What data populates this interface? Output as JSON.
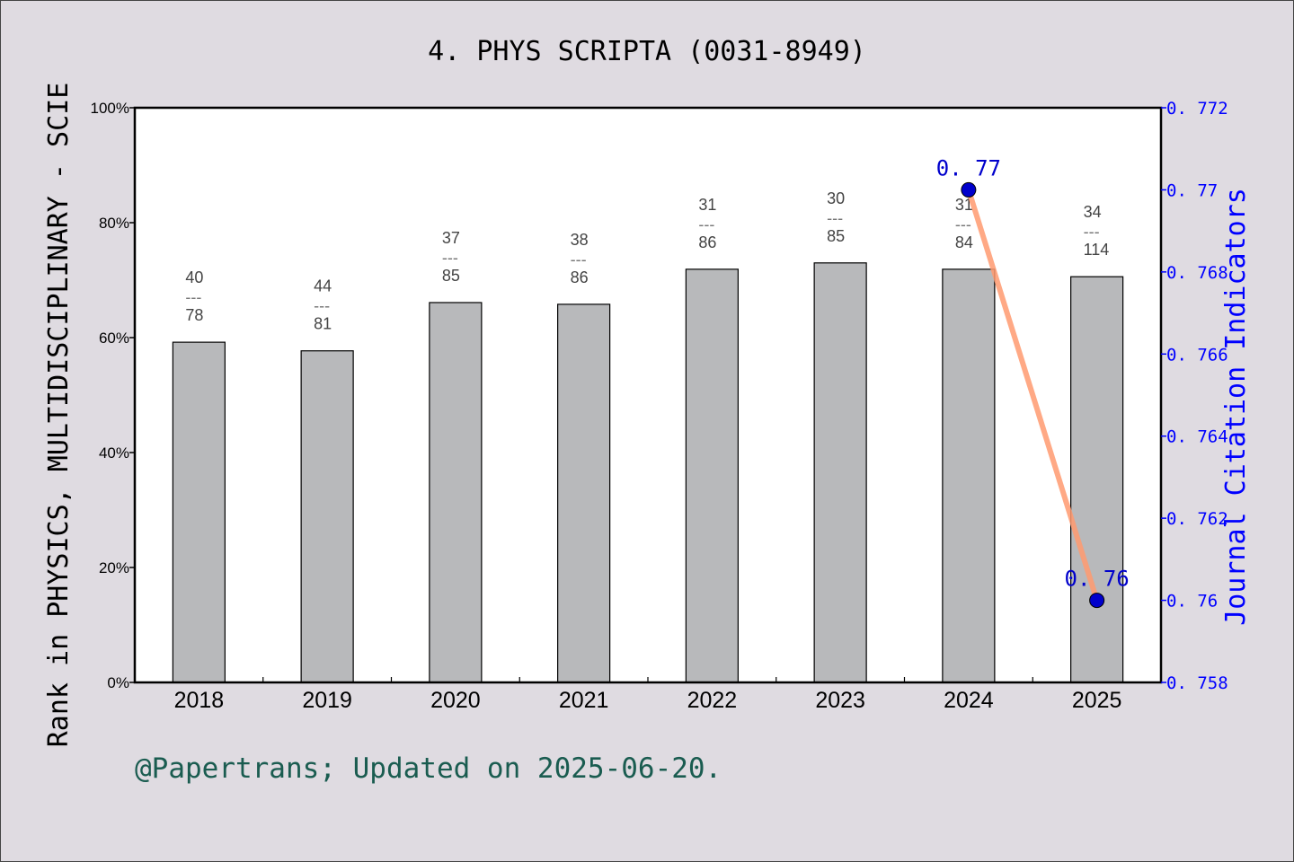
{
  "chart_data": {
    "type": "bar",
    "title": "4. PHYS SCRIPTA (0031-8949)",
    "ylabel": "Rank in PHYSICS, MULTIDISCIPLINARY - SCIE",
    "y2label": "Journal Citation Indicators",
    "categories": [
      "2018",
      "2019",
      "2020",
      "2021",
      "2022",
      "2023",
      "2024",
      "2025"
    ],
    "ylim": [
      0,
      100
    ],
    "yticks": [
      "0%",
      "20%",
      "40%",
      "60%",
      "80%",
      "100%"
    ],
    "y2lim": [
      0.758,
      0.772
    ],
    "y2ticks": [
      "0.758",
      "0.76",
      "0.762",
      "0.764",
      "0.766",
      "0.768",
      "0.77",
      "0.772"
    ],
    "series": [
      {
        "type": "bar",
        "values": [
          59.2,
          57.7,
          66.1,
          65.8,
          71.9,
          73.0,
          71.9,
          70.6
        ],
        "ranks": [
          "40",
          "44",
          "37",
          "38",
          "31",
          "30",
          "31",
          "34"
        ],
        "totals": [
          "78",
          "81",
          "85",
          "86",
          "86",
          "85",
          "84",
          "114"
        ],
        "color": "#b8b9bb"
      },
      {
        "type": "line",
        "axis": "right",
        "x": [
          "2024",
          "2025"
        ],
        "values": [
          0.77,
          0.76
        ],
        "labels": [
          "0.77",
          "0.76"
        ],
        "color": "#ff9a70",
        "marker_color": "#0000cc"
      }
    ],
    "grid": false,
    "footer": "@Papertrans; Updated on 2025-06-20.",
    "colors": {
      "right_axis": "#0000ff",
      "footer": "#1a5c50",
      "background": "#dfdbe1"
    }
  }
}
